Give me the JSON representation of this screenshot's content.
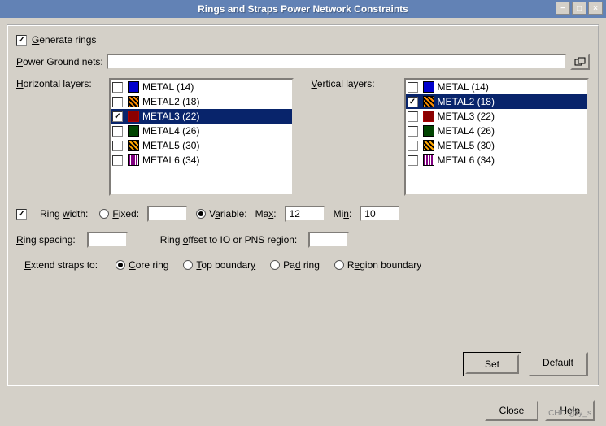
{
  "window": {
    "title": "Rings and Straps Power Network Constraints"
  },
  "generate_rings": {
    "label": "Generate rings",
    "checked": true
  },
  "power_ground_nets": {
    "label": "Power Ground nets:",
    "value": ""
  },
  "horizontal_layers": {
    "label": "Horizontal layers:",
    "items": [
      {
        "label": "METAL (14)",
        "swatch": "sw-blue",
        "checked": false,
        "selected": false
      },
      {
        "label": "METAL2 (18)",
        "swatch": "sw-orange",
        "checked": false,
        "selected": false
      },
      {
        "label": "METAL3 (22)",
        "swatch": "sw-red",
        "checked": true,
        "selected": true
      },
      {
        "label": "METAL4 (26)",
        "swatch": "sw-green",
        "checked": false,
        "selected": false
      },
      {
        "label": "METAL5 (30)",
        "swatch": "sw-orange2",
        "checked": false,
        "selected": false
      },
      {
        "label": "METAL6 (34)",
        "swatch": "sw-purple",
        "checked": false,
        "selected": false
      }
    ]
  },
  "vertical_layers": {
    "label": "Vertical layers:",
    "items": [
      {
        "label": "METAL (14)",
        "swatch": "sw-blue",
        "checked": false,
        "selected": false
      },
      {
        "label": "METAL2 (18)",
        "swatch": "sw-orange",
        "checked": true,
        "selected": true
      },
      {
        "label": "METAL3 (22)",
        "swatch": "sw-red",
        "checked": false,
        "selected": false
      },
      {
        "label": "METAL4 (26)",
        "swatch": "sw-green",
        "checked": false,
        "selected": false
      },
      {
        "label": "METAL5 (30)",
        "swatch": "sw-orange2",
        "checked": false,
        "selected": false
      },
      {
        "label": "METAL6 (34)",
        "swatch": "sw-purple",
        "checked": false,
        "selected": false
      }
    ]
  },
  "ring_width": {
    "label": "Ring width:",
    "checked": true,
    "fixed_label": "Fixed:",
    "fixed_value": "",
    "variable_label": "Variable:",
    "max_label": "Max:",
    "max_value": "12",
    "min_label": "Min:",
    "min_value": "10",
    "mode": "variable"
  },
  "ring_spacing": {
    "label": "Ring spacing:",
    "value": ""
  },
  "ring_offset": {
    "label": "Ring offset to IO or PNS region:",
    "value": ""
  },
  "extend_straps": {
    "label": "Extend straps to:",
    "options": {
      "core": "Core ring",
      "top": "Top boundary",
      "pad": "Pad ring",
      "region": "Region boundary"
    },
    "selected": "core"
  },
  "buttons": {
    "set": "Set",
    "default": "Default",
    "close": "Close",
    "help": "Help"
  },
  "watermark": "CHD @ty_s",
  "underline_chars": {
    "G": "G",
    "P": "P",
    "H": "H",
    "V": "V",
    "w": "w",
    "F": "F",
    "a": "a",
    "x": "x",
    "n": "n",
    "R": "R",
    "o": "o",
    "E": "E",
    "C": "C",
    "T": "T",
    "d": "d",
    "e": "e",
    "S": "S",
    "D": "D",
    "l": "l",
    "He": "H"
  },
  "colors": {
    "titlebar_bg": "#6282b5",
    "panel_bg": "#d4d0c8",
    "selection_bg": "#08246b"
  }
}
